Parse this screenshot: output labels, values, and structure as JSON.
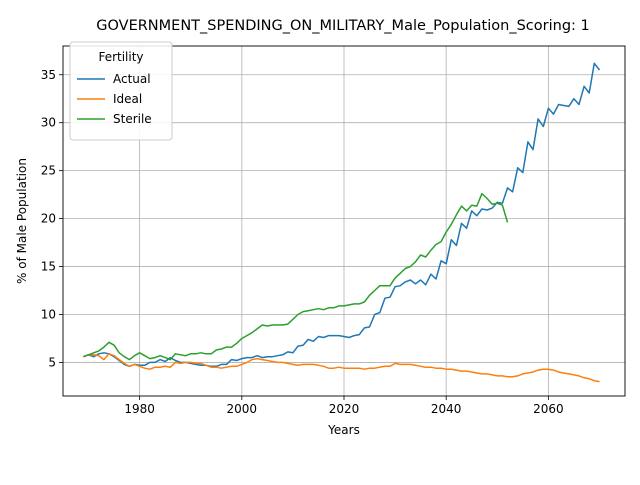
{
  "chart_data": {
    "type": "line",
    "title": "GOVERNMENT_SPENDING_ON_MILITARY_Male_Population_Scoring: 1",
    "xlabel": "Years",
    "ylabel": "% of Male Population",
    "xlim": [
      1965,
      2075
    ],
    "ylim": [
      1.5,
      38
    ],
    "xticks": [
      1980,
      2000,
      2020,
      2040,
      2060
    ],
    "yticks": [
      5,
      10,
      15,
      20,
      25,
      30,
      35
    ],
    "grid": true,
    "legend": {
      "title": "Fertility",
      "position": "top-left"
    },
    "series": [
      {
        "name": "Actual",
        "color": "#1f77b4",
        "x": [
          1969,
          1970,
          1971,
          1972,
          1973,
          1974,
          1975,
          1976,
          1977,
          1978,
          1979,
          1980,
          1981,
          1982,
          1983,
          1984,
          1985,
          1986,
          1987,
          1988,
          1989,
          1990,
          1991,
          1992,
          1993,
          1994,
          1995,
          1996,
          1997,
          1998,
          1999,
          2000,
          2001,
          2002,
          2003,
          2004,
          2005,
          2006,
          2007,
          2008,
          2009,
          2010,
          2011,
          2012,
          2013,
          2014,
          2015,
          2016,
          2017,
          2018,
          2019,
          2020,
          2021,
          2022,
          2023,
          2024,
          2025,
          2026,
          2027,
          2028,
          2029,
          2030,
          2031,
          2032,
          2033,
          2034,
          2035,
          2036,
          2037,
          2038,
          2039,
          2040,
          2041,
          2042,
          2043,
          2044,
          2045,
          2046,
          2047,
          2048,
          2049,
          2050,
          2051,
          2052,
          2053,
          2054,
          2055,
          2056,
          2057,
          2058,
          2059,
          2060,
          2061,
          2062,
          2063,
          2064,
          2065,
          2066,
          2067,
          2068,
          2069,
          2070
        ],
        "y": [
          5.6,
          5.8,
          5.6,
          5.9,
          6.0,
          5.9,
          5.6,
          5.2,
          4.8,
          4.6,
          4.8,
          4.7,
          4.7,
          5.0,
          5.0,
          5.3,
          5.1,
          5.5,
          5.2,
          5.0,
          5.0,
          4.9,
          4.8,
          4.7,
          4.7,
          4.6,
          4.6,
          4.8,
          4.8,
          5.3,
          5.2,
          5.4,
          5.5,
          5.5,
          5.7,
          5.5,
          5.6,
          5.6,
          5.7,
          5.8,
          6.1,
          6.0,
          6.7,
          6.8,
          7.4,
          7.2,
          7.7,
          7.6,
          7.8,
          7.8,
          7.8,
          7.7,
          7.6,
          7.8,
          7.9,
          8.6,
          8.7,
          10.0,
          10.2,
          11.7,
          11.8,
          12.9,
          13.0,
          13.4,
          13.6,
          13.2,
          13.6,
          13.1,
          14.2,
          13.7,
          15.6,
          15.3,
          17.8,
          17.2,
          19.5,
          19.0,
          20.8,
          20.3,
          21.0,
          20.9,
          21.1,
          21.7,
          21.6,
          23.2,
          22.8,
          25.3,
          24.8,
          28.0,
          27.2,
          30.4,
          29.6,
          31.5,
          30.9,
          31.9,
          31.8,
          31.7,
          32.5,
          31.9,
          33.8,
          33.1,
          36.2,
          35.5
        ]
      },
      {
        "name": "Ideal",
        "color": "#ff7f0e",
        "x": [
          1969,
          1970,
          1971,
          1972,
          1973,
          1974,
          1975,
          1976,
          1977,
          1978,
          1979,
          1980,
          1981,
          1982,
          1983,
          1984,
          1985,
          1986,
          1987,
          1988,
          1989,
          1990,
          1991,
          1992,
          1993,
          1994,
          1995,
          1996,
          1997,
          1998,
          1999,
          2000,
          2001,
          2002,
          2003,
          2004,
          2005,
          2006,
          2007,
          2008,
          2009,
          2010,
          2011,
          2012,
          2013,
          2014,
          2015,
          2016,
          2017,
          2018,
          2019,
          2020,
          2021,
          2022,
          2023,
          2024,
          2025,
          2026,
          2027,
          2028,
          2029,
          2030,
          2031,
          2032,
          2033,
          2034,
          2035,
          2036,
          2037,
          2038,
          2039,
          2040,
          2041,
          2042,
          2043,
          2044,
          2045,
          2046,
          2047,
          2048,
          2049,
          2050,
          2051,
          2052,
          2053,
          2054,
          2055,
          2056,
          2057,
          2058,
          2059,
          2060,
          2061,
          2062,
          2063,
          2064,
          2065,
          2066,
          2067,
          2068,
          2069,
          2070
        ],
        "y": [
          5.6,
          5.8,
          5.8,
          5.7,
          5.3,
          5.9,
          5.7,
          5.3,
          4.9,
          4.6,
          4.8,
          4.6,
          4.4,
          4.3,
          4.5,
          4.5,
          4.6,
          4.5,
          5.0,
          4.9,
          5.0,
          5.0,
          4.9,
          4.9,
          4.7,
          4.5,
          4.5,
          4.4,
          4.5,
          4.6,
          4.6,
          4.8,
          5.0,
          5.3,
          5.4,
          5.3,
          5.2,
          5.1,
          5.0,
          5.0,
          4.9,
          4.8,
          4.7,
          4.8,
          4.8,
          4.8,
          4.7,
          4.6,
          4.4,
          4.4,
          4.5,
          4.4,
          4.4,
          4.4,
          4.4,
          4.3,
          4.4,
          4.4,
          4.5,
          4.6,
          4.6,
          4.9,
          4.8,
          4.8,
          4.8,
          4.7,
          4.6,
          4.5,
          4.5,
          4.4,
          4.4,
          4.3,
          4.3,
          4.2,
          4.1,
          4.1,
          4.0,
          3.9,
          3.8,
          3.8,
          3.7,
          3.6,
          3.6,
          3.5,
          3.5,
          3.6,
          3.8,
          3.9,
          4.0,
          4.2,
          4.3,
          4.3,
          4.2,
          4.0,
          3.9,
          3.8,
          3.7,
          3.6,
          3.4,
          3.3,
          3.1,
          3.0
        ]
      },
      {
        "name": "Sterile",
        "color": "#2ca02c",
        "x": [
          1969,
          1970,
          1971,
          1972,
          1973,
          1974,
          1975,
          1976,
          1977,
          1978,
          1979,
          1980,
          1981,
          1982,
          1983,
          1984,
          1985,
          1986,
          1987,
          1988,
          1989,
          1990,
          1991,
          1992,
          1993,
          1994,
          1995,
          1996,
          1997,
          1998,
          1999,
          2000,
          2001,
          2002,
          2003,
          2004,
          2005,
          2006,
          2007,
          2008,
          2009,
          2010,
          2011,
          2012,
          2013,
          2014,
          2015,
          2016,
          2017,
          2018,
          2019,
          2020,
          2021,
          2022,
          2023,
          2024,
          2025,
          2026,
          2027,
          2028,
          2029,
          2030,
          2031,
          2032,
          2033,
          2034,
          2035,
          2036,
          2037,
          2038,
          2039,
          2040,
          2041,
          2042,
          2043,
          2044,
          2045,
          2046,
          2047,
          2048,
          2049,
          2050,
          2051,
          2052
        ],
        "y": [
          5.6,
          5.8,
          6.0,
          6.2,
          6.6,
          7.1,
          6.8,
          6.0,
          5.6,
          5.3,
          5.7,
          6.0,
          5.7,
          5.4,
          5.5,
          5.7,
          5.5,
          5.3,
          5.9,
          5.8,
          5.7,
          5.9,
          5.9,
          6.0,
          5.9,
          5.9,
          6.3,
          6.4,
          6.6,
          6.6,
          7.0,
          7.5,
          7.8,
          8.1,
          8.5,
          8.9,
          8.8,
          8.9,
          8.9,
          8.9,
          9.0,
          9.5,
          10.0,
          10.3,
          10.4,
          10.5,
          10.6,
          10.5,
          10.7,
          10.7,
          10.9,
          10.9,
          11.0,
          11.1,
          11.1,
          11.3,
          12.0,
          12.5,
          13.0,
          13.0,
          13.0,
          13.8,
          14.3,
          14.8,
          15.0,
          15.5,
          16.2,
          16.0,
          16.7,
          17.3,
          17.6,
          18.6,
          19.4,
          20.4,
          21.3,
          20.8,
          21.4,
          21.3,
          22.6,
          22.1,
          21.5,
          21.6,
          21.4,
          19.6
        ]
      }
    ]
  }
}
